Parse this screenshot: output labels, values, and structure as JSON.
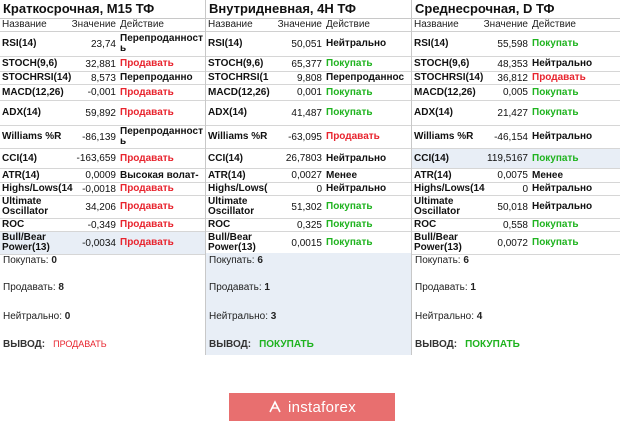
{
  "headers": {
    "name": "Название",
    "value": "Значение",
    "action": "Действие"
  },
  "panels": [
    {
      "title": "Краткосрочная, M15 ТФ",
      "summary_shaded": false,
      "rows": [
        {
          "name": "RSI(14)",
          "value": "23,74",
          "action": "Перепроданность",
          "tone": "",
          "h": 25,
          "hl": false
        },
        {
          "name": "STOCH(9,6)",
          "value": "32,881",
          "action": "Продавать",
          "tone": "red",
          "h": 15,
          "hl": false
        },
        {
          "name": "STOCHRSI(14)",
          "value": "8,573",
          "action": "Перепроданно",
          "tone": "",
          "h": 13,
          "hl": false
        },
        {
          "name": "MACD(12,26)",
          "value": "-0,001",
          "action": "Продавать",
          "tone": "red",
          "h": 16,
          "hl": false
        },
        {
          "name": "ADX(14)",
          "value": "59,892",
          "action": "Продавать",
          "tone": "red",
          "h": 25,
          "hl": false
        },
        {
          "name": "Williams %R",
          "value": "-86,139",
          "action": "Перепроданность",
          "tone": "",
          "h": 23,
          "hl": false
        },
        {
          "name": "CCI(14)",
          "value": "-163,659",
          "action": "Продавать",
          "tone": "red",
          "h": 20,
          "hl": false
        },
        {
          "name": "ATR(14)",
          "value": "0,0009",
          "action": "Высокая волат-",
          "tone": "",
          "h": 14,
          "hl": false
        },
        {
          "name": "Highs/Lows(14",
          "value": "-0,0018",
          "action": "Продавать",
          "tone": "red",
          "h": 13,
          "hl": false
        },
        {
          "name": "Ultimate Oscillator",
          "value": "34,206",
          "action": "Продавать",
          "tone": "red",
          "h": 23,
          "hl": false
        },
        {
          "name": "ROC",
          "value": "-0,349",
          "action": "Продавать",
          "tone": "red",
          "h": 13,
          "hl": false
        },
        {
          "name": "Bull/Bear Power(13)",
          "value": "-0,0034",
          "action": "Продавать",
          "tone": "red",
          "h": 23,
          "hl": true
        }
      ],
      "summary": {
        "buy_label": "Покупать:",
        "buy": "0",
        "sell_label": "Продавать:",
        "sell": "8",
        "neutral_label": "Нейтрально:",
        "neutral": "0",
        "verdict_label": "ВЫВОД:",
        "verdict": "ПРОДАВАТЬ",
        "verdict_tone": "red"
      }
    },
    {
      "title": "Внутридневная, 4Н ТФ",
      "summary_shaded": true,
      "rows": [
        {
          "name": "RSI(14)",
          "value": "50,051",
          "action": "Нейтрально",
          "tone": "",
          "h": 25,
          "hl": false
        },
        {
          "name": "STOCH(9,6)",
          "value": "65,377",
          "action": "Покупать",
          "tone": "green",
          "h": 15,
          "hl": false
        },
        {
          "name": "STOCHRSI(1",
          "value": "9,808",
          "action": "Перепроданнос",
          "tone": "",
          "h": 13,
          "hl": false
        },
        {
          "name": "MACD(12,26)",
          "value": "0,001",
          "action": "Покупать",
          "tone": "green",
          "h": 16,
          "hl": false
        },
        {
          "name": "ADX(14)",
          "value": "41,487",
          "action": "Покупать",
          "tone": "green",
          "h": 25,
          "hl": false
        },
        {
          "name": "Williams %R",
          "value": "-63,095",
          "action": "Продавать",
          "tone": "red",
          "h": 23,
          "hl": false
        },
        {
          "name": "CCI(14)",
          "value": "26,7803",
          "action": "Нейтрально",
          "tone": "",
          "h": 20,
          "hl": false
        },
        {
          "name": "ATR(14)",
          "value": "0,0027",
          "action": "Менее",
          "tone": "",
          "h": 14,
          "hl": false
        },
        {
          "name": "Highs/Lows(",
          "value": "0",
          "action": "Нейтрально",
          "tone": "",
          "h": 13,
          "hl": false
        },
        {
          "name": "Ultimate Oscillator",
          "value": "51,302",
          "action": "Покупать",
          "tone": "green",
          "h": 23,
          "hl": false
        },
        {
          "name": "ROC",
          "value": "0,325",
          "action": "Покупать",
          "tone": "green",
          "h": 13,
          "hl": false
        },
        {
          "name": "Bull/Bear Power(13)",
          "value": "0,0015",
          "action": "Покупать",
          "tone": "green",
          "h": 23,
          "hl": false
        }
      ],
      "summary": {
        "buy_label": "Покупать:",
        "buy": "6",
        "sell_label": "Продавать:",
        "sell": "1",
        "neutral_label": "Нейтрально:",
        "neutral": "3",
        "verdict_label": "ВЫВОД:",
        "verdict": "ПОКУПАТЬ",
        "verdict_tone": "green"
      }
    },
    {
      "title": "Среднесрочная, D ТФ",
      "summary_shaded": false,
      "rows": [
        {
          "name": "RSI(14)",
          "value": "55,598",
          "action": "Покупать",
          "tone": "green",
          "h": 25,
          "hl": false
        },
        {
          "name": "STOCH(9,6)",
          "value": "48,353",
          "action": "Нейтрально",
          "tone": "",
          "h": 15,
          "hl": false
        },
        {
          "name": "STOCHRSI(14)",
          "value": "36,812",
          "action": "Продавать",
          "tone": "red",
          "h": 13,
          "hl": false
        },
        {
          "name": "MACD(12,26)",
          "value": "0,005",
          "action": "Покупать",
          "tone": "green",
          "h": 16,
          "hl": false
        },
        {
          "name": "ADX(14)",
          "value": "21,427",
          "action": "Покупать",
          "tone": "green",
          "h": 25,
          "hl": false
        },
        {
          "name": "Williams %R",
          "value": "-46,154",
          "action": "Нейтрально",
          "tone": "",
          "h": 23,
          "hl": false
        },
        {
          "name": "CCI(14)",
          "value": "119,5167",
          "action": "Покупать",
          "tone": "green",
          "h": 20,
          "hl": true
        },
        {
          "name": "ATR(14)",
          "value": "0,0075",
          "action": "Менее",
          "tone": "",
          "h": 14,
          "hl": false
        },
        {
          "name": "Highs/Lows(14",
          "value": "0",
          "action": "Нейтрально",
          "tone": "",
          "h": 13,
          "hl": false
        },
        {
          "name": "Ultimate Oscillator",
          "value": "50,018",
          "action": "Нейтрально",
          "tone": "",
          "h": 23,
          "hl": false
        },
        {
          "name": "ROC",
          "value": "0,558",
          "action": "Покупать",
          "tone": "green",
          "h": 13,
          "hl": false
        },
        {
          "name": "Bull/Bear Power(13)",
          "value": "0,0072",
          "action": "Покупать",
          "tone": "green",
          "h": 23,
          "hl": false
        }
      ],
      "summary": {
        "buy_label": "Покупать:",
        "buy": "6",
        "sell_label": "Продавать:",
        "sell": "1",
        "neutral_label": "Нейтрально:",
        "neutral": "4",
        "verdict_label": "ВЫВОД:",
        "verdict": "ПОКУПАТЬ",
        "verdict_tone": "green"
      }
    }
  ],
  "brand": {
    "label": "instaforex",
    "icon": "instaforex-logo-icon",
    "color": "#e86f6f"
  },
  "colors": {
    "sell": "#e8242e",
    "buy": "#1fb31f",
    "highlight": "#e8eef6"
  }
}
